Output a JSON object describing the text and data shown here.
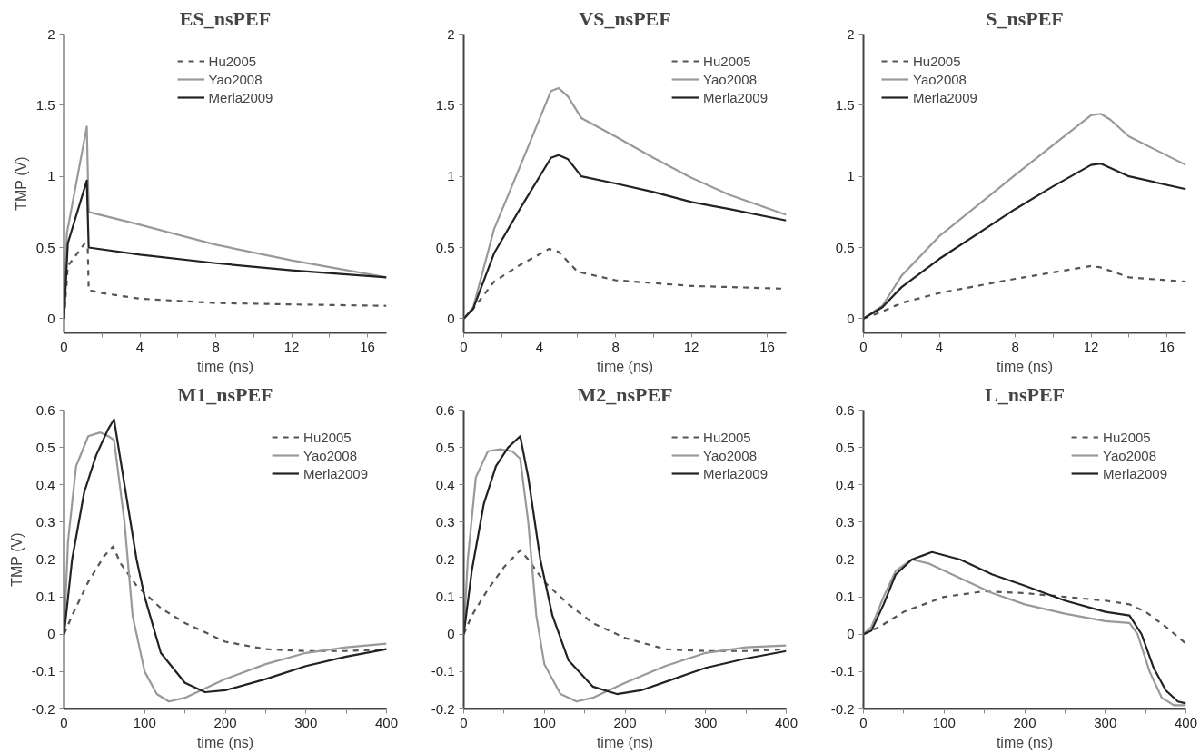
{
  "chart_data": [
    {
      "type": "line",
      "title": "ES_nsPEF",
      "xlabel": "time (ns)",
      "ylabel": "TMP (V)",
      "xlim": [
        0,
        17
      ],
      "ylim": [
        -0.1,
        2
      ],
      "xticks": [
        0,
        {
          "value": 2,
          "label": null
        },
        4,
        {
          "value": 6,
          "label": null
        },
        8,
        {
          "value": 10,
          "label": null
        },
        12,
        {
          "value": 14,
          "label": null
        },
        16
      ],
      "yticks": [
        0,
        0.5,
        1,
        1.5,
        2
      ],
      "grid": false,
      "legend": "top",
      "series": [
        {
          "name": "Hu2005",
          "color": "#555555",
          "line_style": "dashed",
          "x": [
            0,
            0.2,
            1.1,
            1.25,
            1.3,
            2,
            4,
            8,
            12,
            17
          ],
          "values": [
            0,
            0.37,
            0.53,
            0.5,
            0.2,
            0.18,
            0.14,
            0.11,
            0.1,
            0.09
          ]
        },
        {
          "name": "Yao2008",
          "color": "#999999",
          "line_style": "solid",
          "x": [
            0,
            0.15,
            1.2,
            1.3,
            4,
            8,
            12,
            17
          ],
          "values": [
            0,
            0.6,
            1.35,
            0.75,
            0.66,
            0.52,
            0.41,
            0.29
          ]
        },
        {
          "name": "Merla2009",
          "color": "#222222",
          "line_style": "solid",
          "x": [
            0,
            0.2,
            1.2,
            1.3,
            4,
            8,
            12,
            17
          ],
          "values": [
            0,
            0.53,
            0.97,
            0.5,
            0.45,
            0.39,
            0.34,
            0.29
          ]
        }
      ]
    },
    {
      "type": "line",
      "title": "VS_nsPEF",
      "xlabel": "time (ns)",
      "xlim": [
        0,
        17
      ],
      "ylim": [
        -0.1,
        2
      ],
      "xticks": [
        0,
        {
          "value": 2,
          "label": null
        },
        4,
        {
          "value": 6,
          "label": null
        },
        8,
        {
          "value": 10,
          "label": null
        },
        12,
        {
          "value": 14,
          "label": null
        },
        16
      ],
      "yticks": [
        0,
        0.5,
        1,
        1.5,
        2
      ],
      "grid": false,
      "legend": "top right",
      "series": [
        {
          "name": "Hu2005",
          "color": "#555555",
          "line_style": "dashed",
          "x": [
            0,
            0.5,
            1.6,
            3,
            4.5,
            5,
            6,
            8,
            10,
            12,
            17
          ],
          "values": [
            0,
            0.07,
            0.26,
            0.38,
            0.49,
            0.47,
            0.33,
            0.27,
            0.25,
            0.23,
            0.21
          ]
        },
        {
          "name": "Yao2008",
          "color": "#999999",
          "line_style": "solid",
          "x": [
            0,
            0.5,
            1.6,
            3,
            4.6,
            5,
            5.5,
            6.2,
            8,
            10,
            12,
            14,
            17
          ],
          "values": [
            0,
            0.08,
            0.63,
            1.08,
            1.6,
            1.62,
            1.56,
            1.41,
            1.28,
            1.13,
            0.99,
            0.87,
            0.73
          ]
        },
        {
          "name": "Merla2009",
          "color": "#222222",
          "line_style": "solid",
          "x": [
            0,
            0.5,
            1.6,
            3,
            4.6,
            5,
            5.5,
            6.2,
            8,
            10,
            12,
            14,
            17
          ],
          "values": [
            0,
            0.07,
            0.46,
            0.78,
            1.13,
            1.15,
            1.12,
            1.0,
            0.95,
            0.89,
            0.82,
            0.77,
            0.69
          ]
        }
      ]
    },
    {
      "type": "line",
      "title": "S_nsPEF",
      "xlabel": "time (ns)",
      "xlim": [
        0,
        17
      ],
      "ylim": [
        -0.1,
        2
      ],
      "xticks": [
        0,
        {
          "value": 2,
          "label": null
        },
        4,
        {
          "value": 6,
          "label": null
        },
        8,
        {
          "value": 10,
          "label": null
        },
        12,
        {
          "value": 14,
          "label": null
        },
        16
      ],
      "yticks": [
        0,
        0.5,
        1,
        1.5,
        2
      ],
      "grid": false,
      "legend": "top left",
      "series": [
        {
          "name": "Hu2005",
          "color": "#555555",
          "line_style": "dashed",
          "x": [
            0,
            1,
            2,
            4,
            8,
            12,
            12.5,
            14,
            17
          ],
          "values": [
            0,
            0.05,
            0.11,
            0.18,
            0.28,
            0.37,
            0.36,
            0.29,
            0.26
          ]
        },
        {
          "name": "Yao2008",
          "color": "#999999",
          "line_style": "solid",
          "x": [
            0,
            1,
            2,
            4,
            8,
            10,
            12,
            12.5,
            13,
            14,
            17
          ],
          "values": [
            0,
            0.09,
            0.3,
            0.58,
            1.01,
            1.22,
            1.43,
            1.44,
            1.4,
            1.28,
            1.08
          ]
        },
        {
          "name": "Merla2009",
          "color": "#222222",
          "line_style": "solid",
          "x": [
            0,
            1,
            2,
            4,
            8,
            10,
            12,
            12.5,
            13,
            14,
            17
          ],
          "values": [
            0,
            0.08,
            0.22,
            0.42,
            0.77,
            0.93,
            1.08,
            1.09,
            1.06,
            1.0,
            0.91
          ]
        }
      ]
    },
    {
      "type": "line",
      "title": "M1_nsPEF",
      "xlabel": "time (ns)",
      "ylabel": "TMP (V)",
      "xlim": [
        0,
        400
      ],
      "ylim": [
        -0.2,
        0.6
      ],
      "xticks": [
        0,
        {
          "value": 50,
          "label": null
        },
        100,
        {
          "value": 150,
          "label": null
        },
        200,
        {
          "value": 250,
          "label": null
        },
        300,
        {
          "value": 350,
          "label": null
        },
        400
      ],
      "yticks": [
        -0.2,
        -0.1,
        0,
        0.1,
        0.2,
        0.3,
        0.4,
        0.5,
        0.6
      ],
      "grid": false,
      "legend": "top right",
      "series": [
        {
          "name": "Hu2005",
          "color": "#555555",
          "line_style": "dashed",
          "x": [
            0,
            10,
            30,
            50,
            61,
            70,
            90,
            120,
            150,
            200,
            250,
            300,
            350,
            400
          ],
          "values": [
            0,
            0.05,
            0.14,
            0.21,
            0.235,
            0.19,
            0.13,
            0.07,
            0.03,
            -0.02,
            -0.04,
            -0.045,
            -0.045,
            -0.04
          ]
        },
        {
          "name": "Yao2008",
          "color": "#999999",
          "line_style": "solid",
          "x": [
            0,
            5,
            15,
            30,
            45,
            55,
            62,
            75,
            85,
            100,
            115,
            130,
            150,
            200,
            250,
            300,
            350,
            400
          ],
          "values": [
            0,
            0.25,
            0.45,
            0.53,
            0.54,
            0.53,
            0.52,
            0.3,
            0.05,
            -0.1,
            -0.16,
            -0.18,
            -0.17,
            -0.12,
            -0.08,
            -0.05,
            -0.035,
            -0.025
          ]
        },
        {
          "name": "Merla2009",
          "color": "#222222",
          "line_style": "solid",
          "x": [
            0,
            10,
            25,
            40,
            55,
            62,
            75,
            90,
            100,
            120,
            150,
            175,
            200,
            250,
            300,
            350,
            400
          ],
          "values": [
            0,
            0.2,
            0.38,
            0.48,
            0.55,
            0.575,
            0.4,
            0.2,
            0.1,
            -0.05,
            -0.13,
            -0.155,
            -0.15,
            -0.12,
            -0.085,
            -0.06,
            -0.04
          ]
        }
      ]
    },
    {
      "type": "line",
      "title": "M2_nsPEF",
      "xlabel": "time (ns)",
      "xlim": [
        0,
        400
      ],
      "ylim": [
        -0.2,
        0.6
      ],
      "xticks": [
        0,
        {
          "value": 50,
          "label": null
        },
        100,
        {
          "value": 150,
          "label": null
        },
        200,
        {
          "value": 250,
          "label": null
        },
        300,
        {
          "value": 350,
          "label": null
        },
        400
      ],
      "yticks": [
        -0.2,
        -0.1,
        0,
        0.1,
        0.2,
        0.3,
        0.4,
        0.5,
        0.6
      ],
      "grid": false,
      "legend": "top right",
      "series": [
        {
          "name": "Hu2005",
          "color": "#555555",
          "line_style": "dashed",
          "x": [
            0,
            10,
            30,
            50,
            70,
            80,
            100,
            130,
            160,
            200,
            250,
            300,
            350,
            400
          ],
          "values": [
            0,
            0.05,
            0.12,
            0.18,
            0.225,
            0.2,
            0.14,
            0.08,
            0.03,
            -0.01,
            -0.04,
            -0.045,
            -0.045,
            -0.04
          ]
        },
        {
          "name": "Yao2008",
          "color": "#999999",
          "line_style": "solid",
          "x": [
            0,
            5,
            15,
            30,
            45,
            60,
            70,
            80,
            90,
            100,
            120,
            140,
            160,
            200,
            250,
            300,
            350,
            400
          ],
          "values": [
            0,
            0.2,
            0.42,
            0.49,
            0.495,
            0.49,
            0.47,
            0.3,
            0.05,
            -0.08,
            -0.16,
            -0.18,
            -0.17,
            -0.13,
            -0.085,
            -0.05,
            -0.035,
            -0.03
          ]
        },
        {
          "name": "Merla2009",
          "color": "#222222",
          "line_style": "solid",
          "x": [
            0,
            10,
            25,
            40,
            55,
            70,
            80,
            95,
            110,
            130,
            160,
            190,
            220,
            260,
            300,
            350,
            400
          ],
          "values": [
            0,
            0.17,
            0.35,
            0.45,
            0.5,
            0.53,
            0.42,
            0.2,
            0.05,
            -0.07,
            -0.14,
            -0.16,
            -0.15,
            -0.12,
            -0.09,
            -0.065,
            -0.045
          ]
        }
      ]
    },
    {
      "type": "line",
      "title": "L_nsPEF",
      "xlabel": "time (ns)",
      "xlim": [
        0,
        400
      ],
      "ylim": [
        -0.2,
        0.6
      ],
      "xticks": [
        0,
        {
          "value": 50,
          "label": null
        },
        100,
        {
          "value": 150,
          "label": null
        },
        200,
        {
          "value": 250,
          "label": null
        },
        300,
        {
          "value": 350,
          "label": null
        },
        400
      ],
      "yticks": [
        -0.2,
        -0.1,
        0,
        0.1,
        0.2,
        0.3,
        0.4,
        0.5,
        0.6
      ],
      "grid": false,
      "legend": "top right",
      "series": [
        {
          "name": "Hu2005",
          "color": "#555555",
          "line_style": "dashed",
          "x": [
            0,
            20,
            50,
            100,
            150,
            200,
            250,
            300,
            330,
            350,
            375,
            400
          ],
          "values": [
            0,
            0.02,
            0.06,
            0.1,
            0.115,
            0.11,
            0.1,
            0.09,
            0.08,
            0.06,
            0.02,
            -0.025
          ]
        },
        {
          "name": "Yao2008",
          "color": "#999999",
          "line_style": "solid",
          "x": [
            0,
            10,
            25,
            40,
            60,
            80,
            120,
            160,
            200,
            250,
            300,
            330,
            340,
            355,
            370,
            385,
            400
          ],
          "values": [
            0,
            0.02,
            0.1,
            0.17,
            0.2,
            0.19,
            0.15,
            0.11,
            0.08,
            0.055,
            0.035,
            0.03,
            0.0,
            -0.1,
            -0.17,
            -0.19,
            -0.19
          ]
        },
        {
          "name": "Merla2009",
          "color": "#222222",
          "line_style": "solid",
          "x": [
            0,
            10,
            25,
            40,
            60,
            85,
            120,
            160,
            200,
            250,
            300,
            330,
            345,
            360,
            375,
            390,
            400
          ],
          "values": [
            0,
            0.01,
            0.08,
            0.16,
            0.2,
            0.22,
            0.2,
            0.16,
            0.13,
            0.09,
            0.06,
            0.05,
            0.0,
            -0.09,
            -0.15,
            -0.18,
            -0.185
          ]
        }
      ]
    }
  ]
}
